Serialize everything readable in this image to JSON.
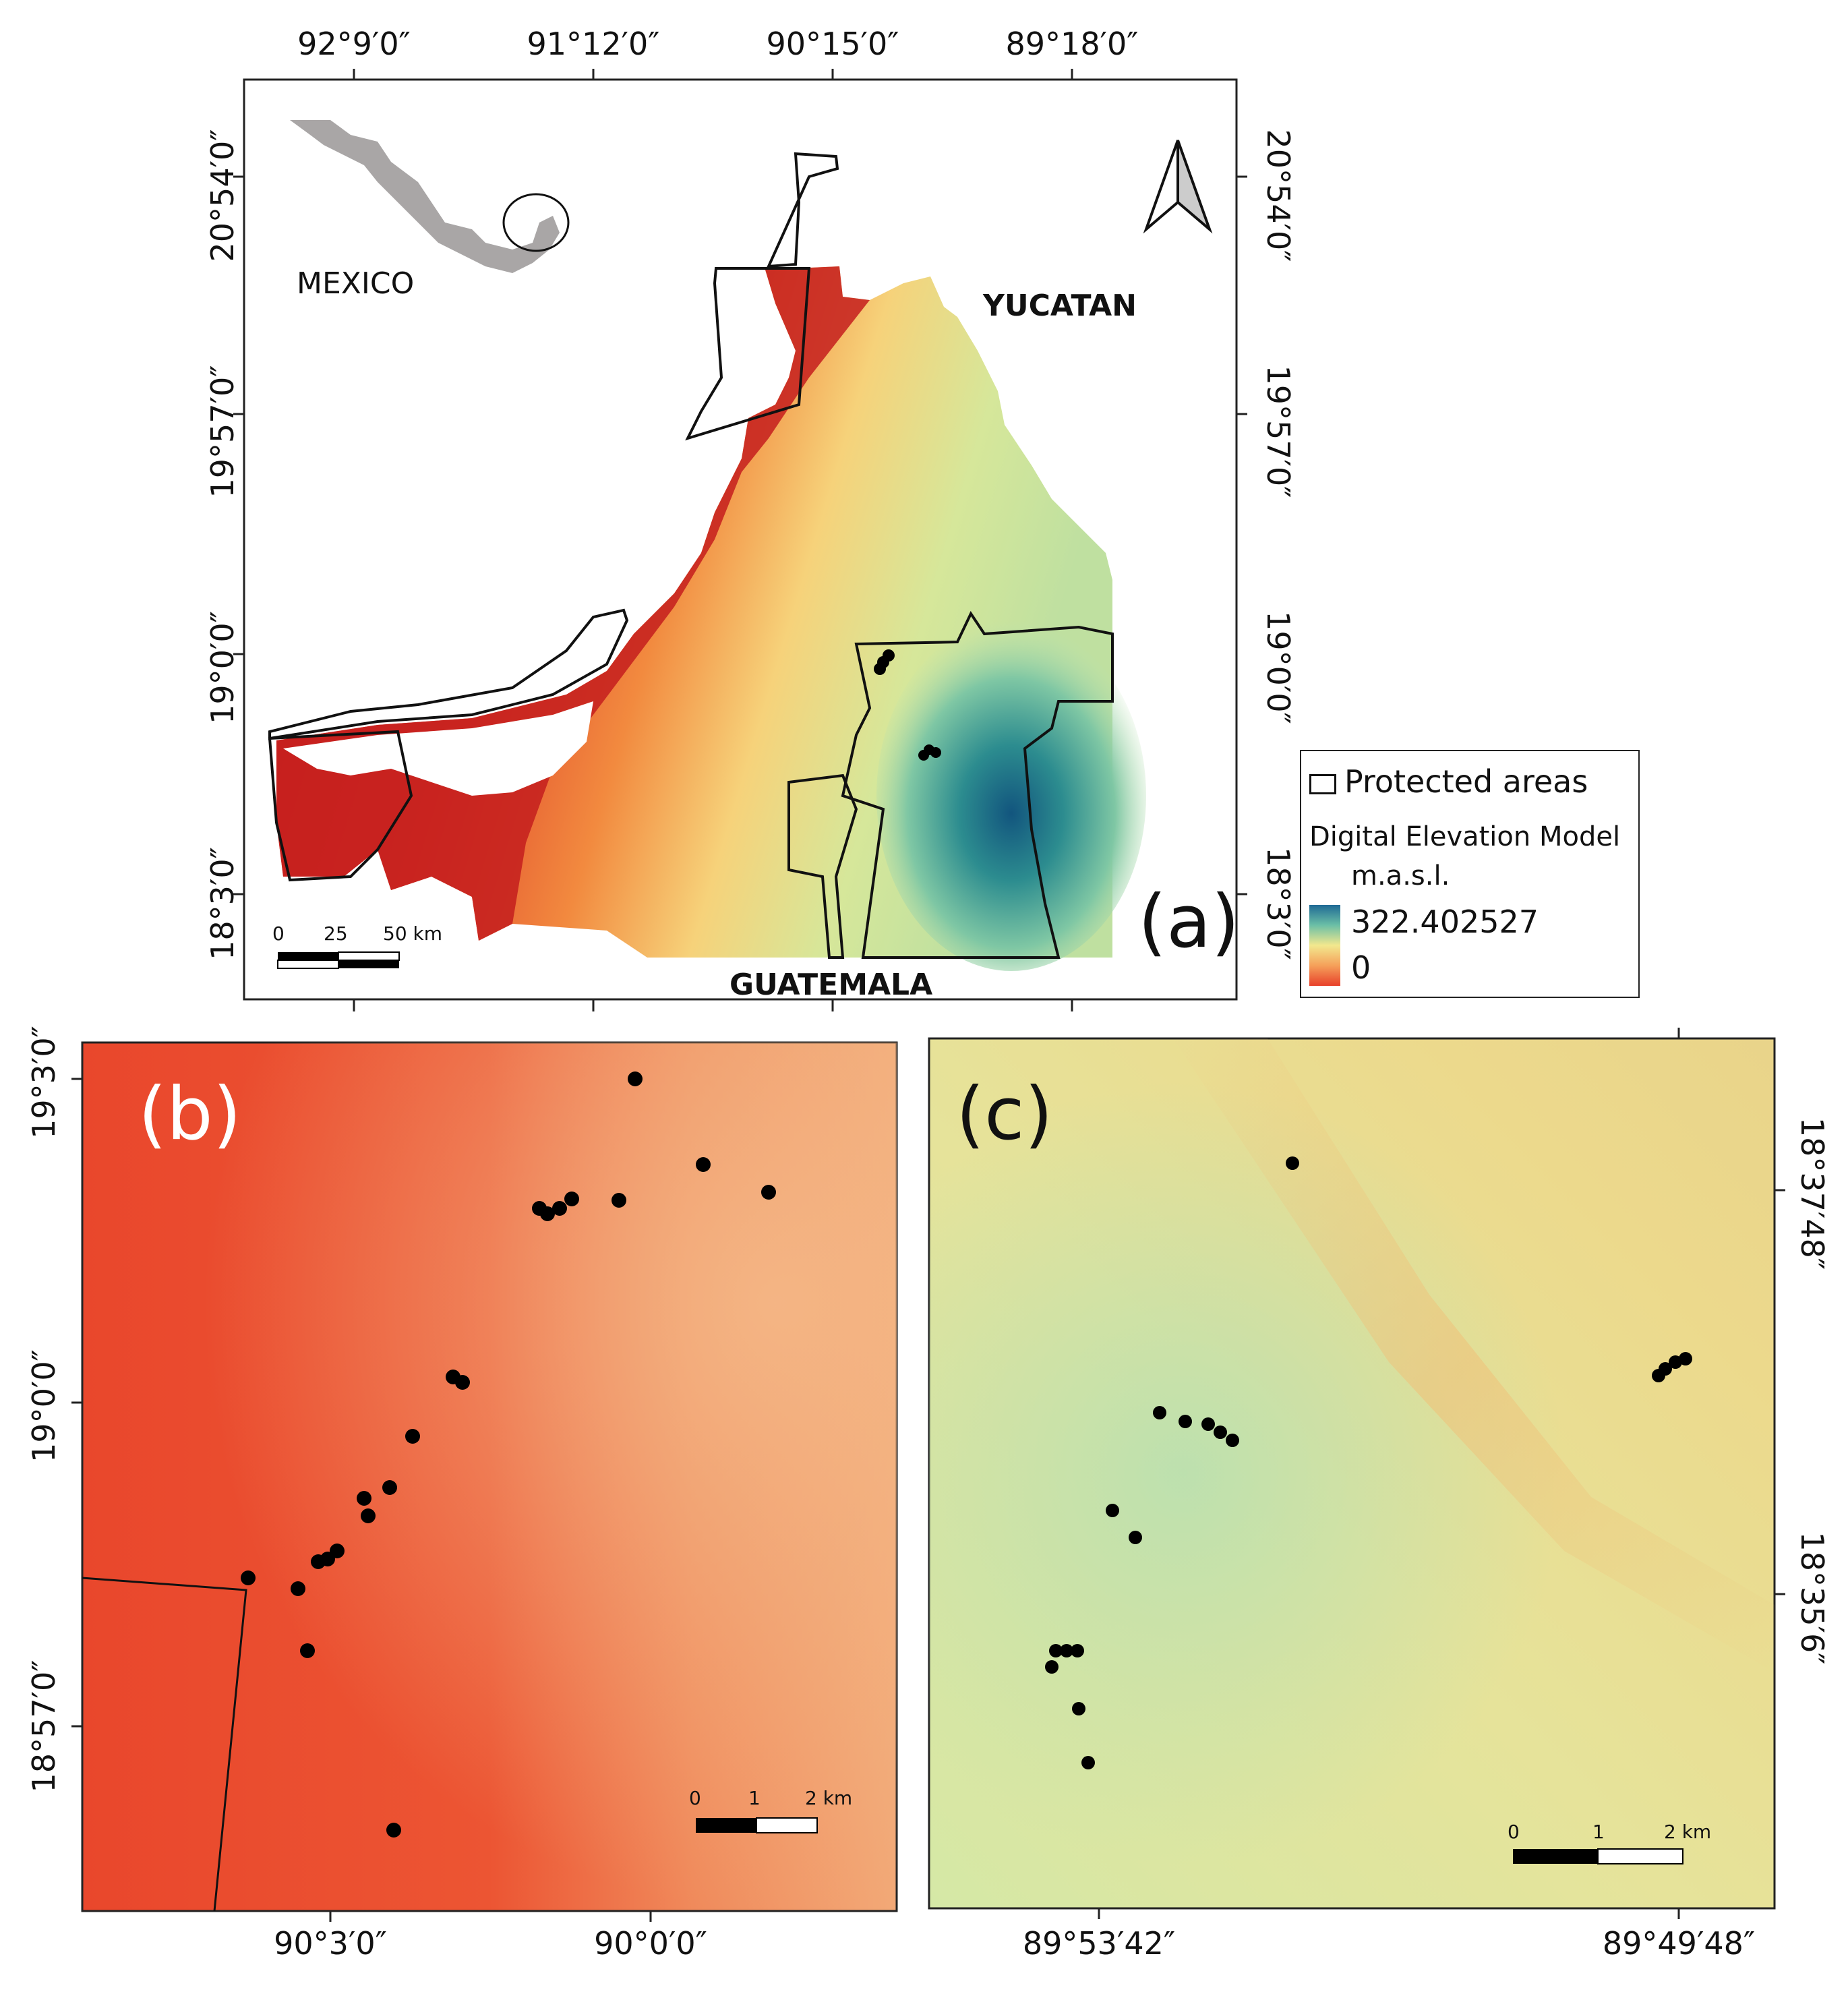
{
  "panel_a": {
    "letter": "(a)",
    "top_ticks": [
      "92°9′0″",
      "91°12′0″",
      "90°15′0″",
      "89°18′0″"
    ],
    "left_ticks": [
      "20°54′0″",
      "19°57′0″",
      "19°0′0″",
      "18°3′0″"
    ],
    "right_ticks": [
      "20°54′0″",
      "19°57′0″",
      "19°0′0″",
      "18°3′0″"
    ],
    "labels": {
      "mexico": "MEXICO",
      "yucatan": "YUCATAN",
      "guatemala": "GUATEMALA"
    },
    "scale": {
      "t0": "0",
      "t1": "25",
      "t2": "50 km"
    }
  },
  "legend": {
    "protected": "Protected areas",
    "dem_title": "Digital Elevation Model",
    "unit": "m.a.s.l.",
    "max": "322.402527",
    "min": "0",
    "colors": {
      "high": "#1f6a95",
      "mid": "#f2e88e",
      "low": "#e8402a"
    }
  },
  "panel_b": {
    "letter": "(b)",
    "left_ticks": [
      "19°3′0″",
      "19°0′0″",
      "18°57′0″"
    ],
    "bottom_ticks": [
      "90°3′0″",
      "90°0′0″"
    ],
    "scale": {
      "t0": "0",
      "t1": "1",
      "t2": "2 km"
    }
  },
  "panel_c": {
    "letter": "(c)",
    "right_ticks": [
      "18°37′48″",
      "18°35′6″"
    ],
    "bottom_ticks": [
      "89°53′42″",
      "89°49′48″"
    ],
    "scale": {
      "t0": "0",
      "t1": "1",
      "t2": "2 km"
    }
  }
}
